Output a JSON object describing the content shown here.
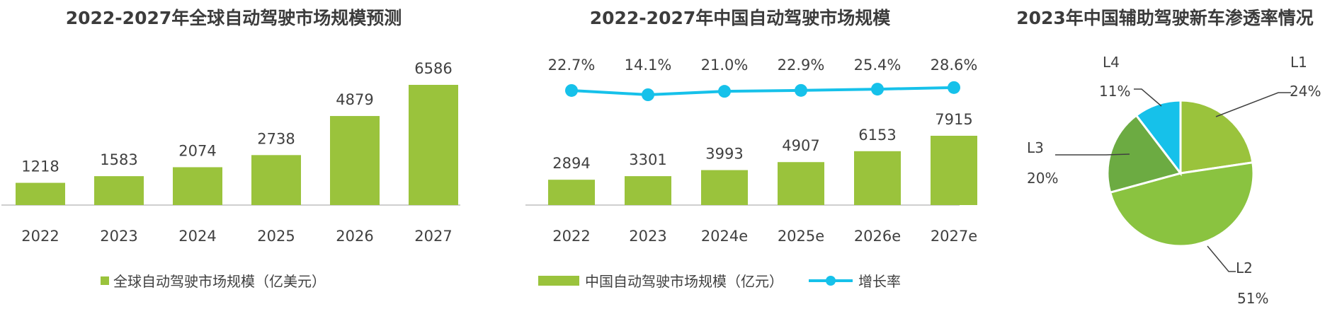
{
  "colors": {
    "bar": "#9ac33c",
    "line": "#16c1ea",
    "pie": [
      "#9ac33c",
      "#8ac340",
      "#6cab42",
      "#16c1ea"
    ]
  },
  "chart_data": [
    {
      "type": "bar",
      "title": "2022-2027年全球自动驾驶市场规模预测",
      "categories": [
        "2022",
        "2023",
        "2024",
        "2025",
        "2026",
        "2027"
      ],
      "series": [
        {
          "name": "全球自动驾驶市场规模（亿美元）",
          "values": [
            1218,
            1583,
            2074,
            2738,
            4879,
            6586
          ]
        }
      ],
      "legend": "bottom"
    },
    {
      "type": "bar",
      "title": "2022-2027年中国自动驾驶市场规模",
      "categories": [
        "2022",
        "2023",
        "2024e",
        "2025e",
        "2026e",
        "2027e"
      ],
      "series": [
        {
          "name": "中国自动驾驶市场规模（亿元）",
          "type": "bar",
          "values": [
            2894,
            3301,
            3993,
            4907,
            6153,
            7915
          ]
        },
        {
          "name": "增长率",
          "type": "line",
          "values": [
            22.7,
            14.1,
            21.0,
            22.9,
            25.4,
            28.6
          ],
          "labels": [
            "22.7%",
            "14.1%",
            "21.0%",
            "22.9%",
            "25.4%",
            "28.6%"
          ]
        }
      ],
      "legend": "bottom"
    },
    {
      "type": "pie",
      "title": "2023年中国辅助驾驶新车渗透率情况",
      "slices": [
        {
          "label": "L1",
          "value": 24,
          "text": "24%"
        },
        {
          "label": "L2",
          "value": 51,
          "text": "51%"
        },
        {
          "label": "L3",
          "value": 20,
          "text": "20%"
        },
        {
          "label": "L4",
          "value": 11,
          "text": "11%"
        }
      ]
    }
  ]
}
